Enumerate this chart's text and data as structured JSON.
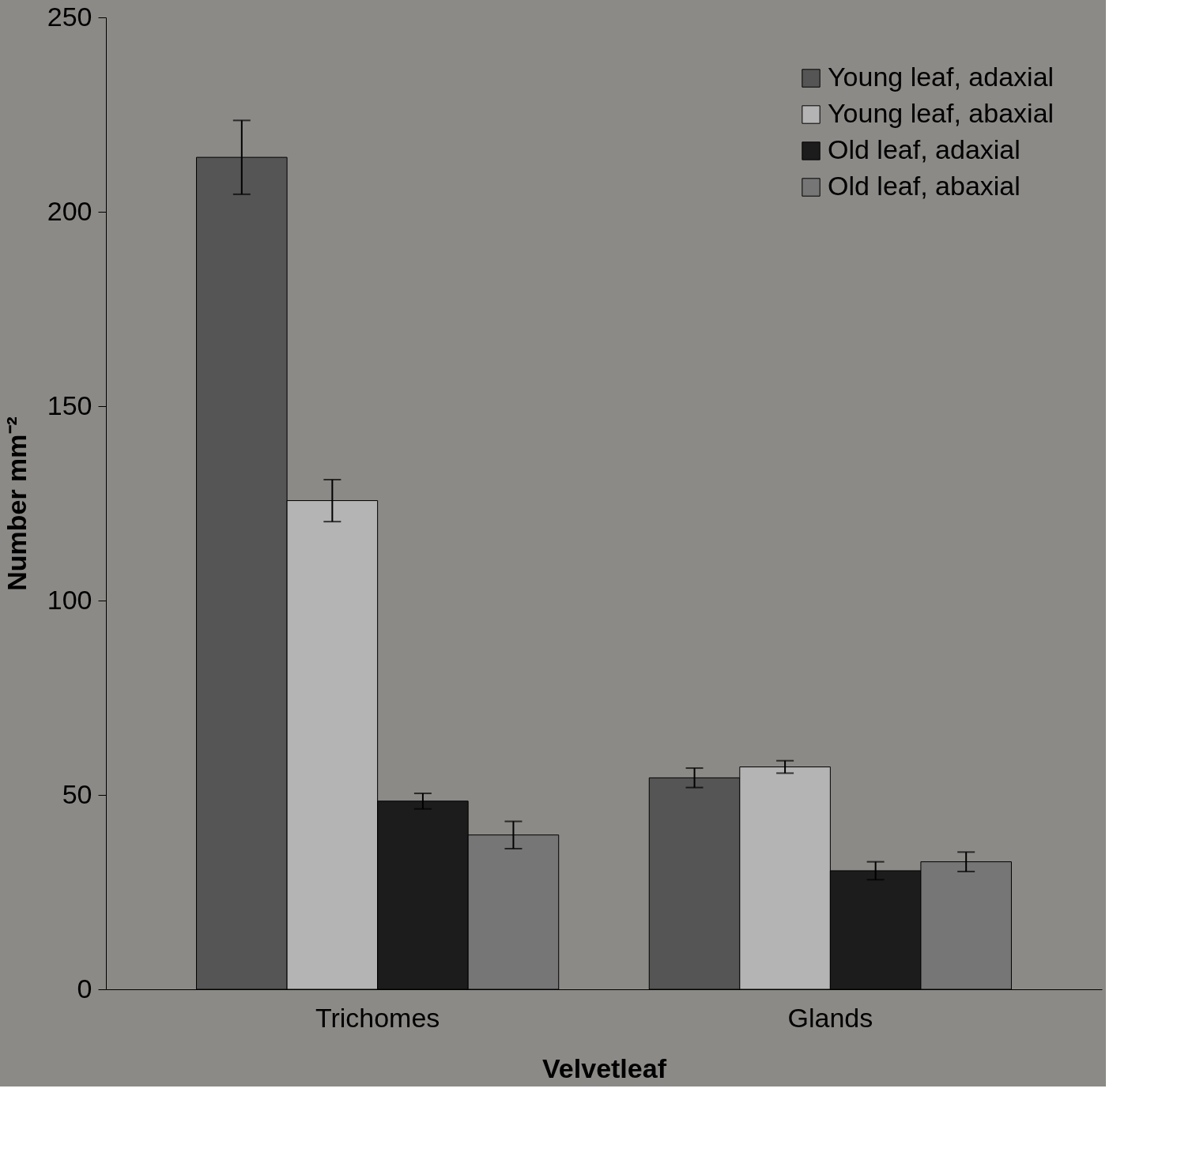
{
  "chart_data": {
    "type": "bar",
    "xlabel": "Velvetleaf",
    "ylabel": "Number mm⁻²",
    "categories": [
      "Trichomes",
      "Glands"
    ],
    "series": [
      {
        "name": "Young leaf, adaxial",
        "color": "#555555",
        "values": [
          214,
          54.4
        ],
        "errors": [
          9.5,
          2.5
        ]
      },
      {
        "name": "Young leaf, abaxial",
        "color": "#b4b4b4",
        "values": [
          125.7,
          57.2
        ],
        "errors": [
          5.4,
          1.6
        ]
      },
      {
        "name": "Old leaf, adaxial",
        "color": "#1c1c1c",
        "values": [
          48.4,
          30.5
        ],
        "errors": [
          2,
          2.3
        ]
      },
      {
        "name": "Old leaf, abaxial",
        "color": "#767676",
        "values": [
          39.7,
          32.8
        ],
        "errors": [
          3.5,
          2.5
        ]
      }
    ],
    "ylim": [
      0,
      250
    ],
    "yticks": [
      0,
      50,
      100,
      150,
      200,
      250
    ],
    "grid": false,
    "legend": "top right"
  }
}
